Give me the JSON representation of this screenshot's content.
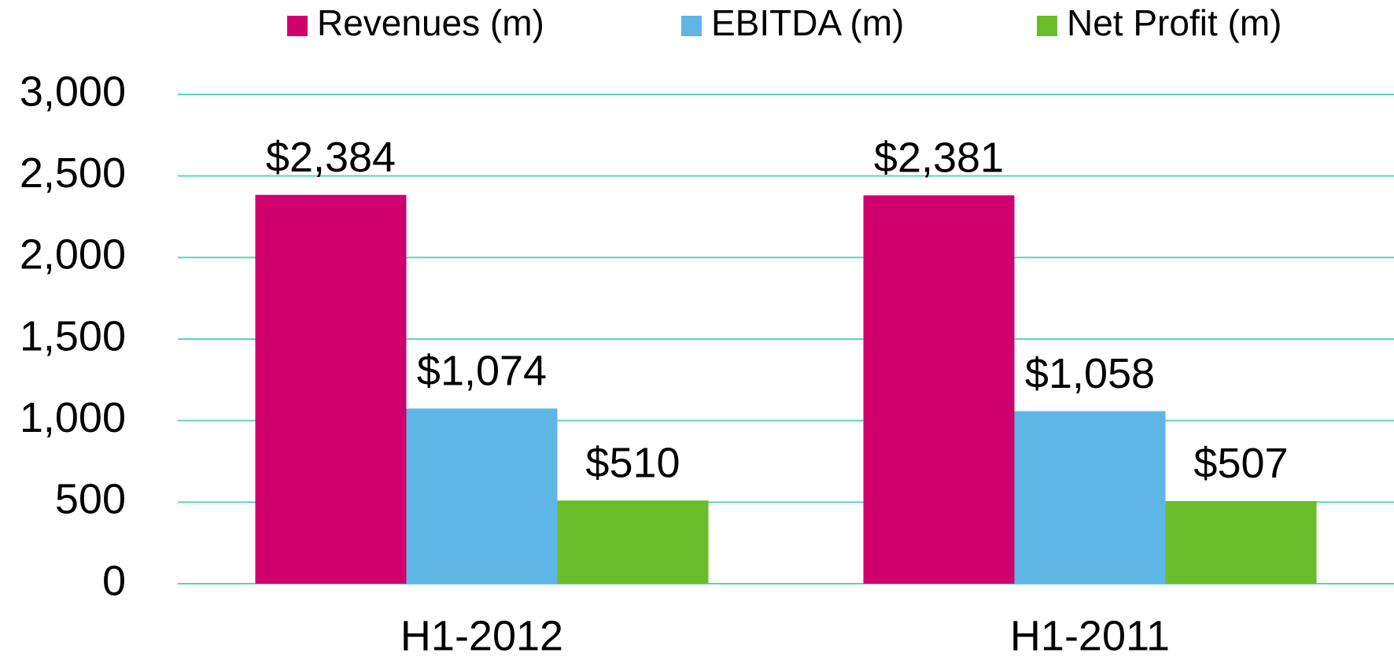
{
  "chart_data": {
    "type": "bar",
    "categories": [
      "H1-2012",
      "H1-2011"
    ],
    "series": [
      {
        "name": "Revenues (m)",
        "color": "#d0006f",
        "values": [
          2384,
          2381
        ],
        "value_labels": [
          "$2,384",
          "$2,381"
        ]
      },
      {
        "name": "EBITDA (m)",
        "color": "#5fb6e4",
        "values": [
          1074,
          1058
        ],
        "value_labels": [
          "$1,074",
          "$1,058"
        ]
      },
      {
        "name": "Net Profit (m)",
        "color": "#6abd28",
        "values": [
          510,
          507
        ],
        "value_labels": [
          "$510",
          "$507"
        ]
      }
    ],
    "ylim": [
      0,
      3000
    ],
    "yticks": [
      0,
      500,
      {
        "value": 1000,
        "label": "1,000"
      },
      {
        "value": 1500,
        "label": "1,500"
      },
      {
        "value": 2000,
        "label": "2,000"
      },
      {
        "value": 2500,
        "label": "2,500"
      },
      {
        "value": 3000,
        "label": "3,000"
      }
    ],
    "grid": true,
    "legend": "top"
  }
}
